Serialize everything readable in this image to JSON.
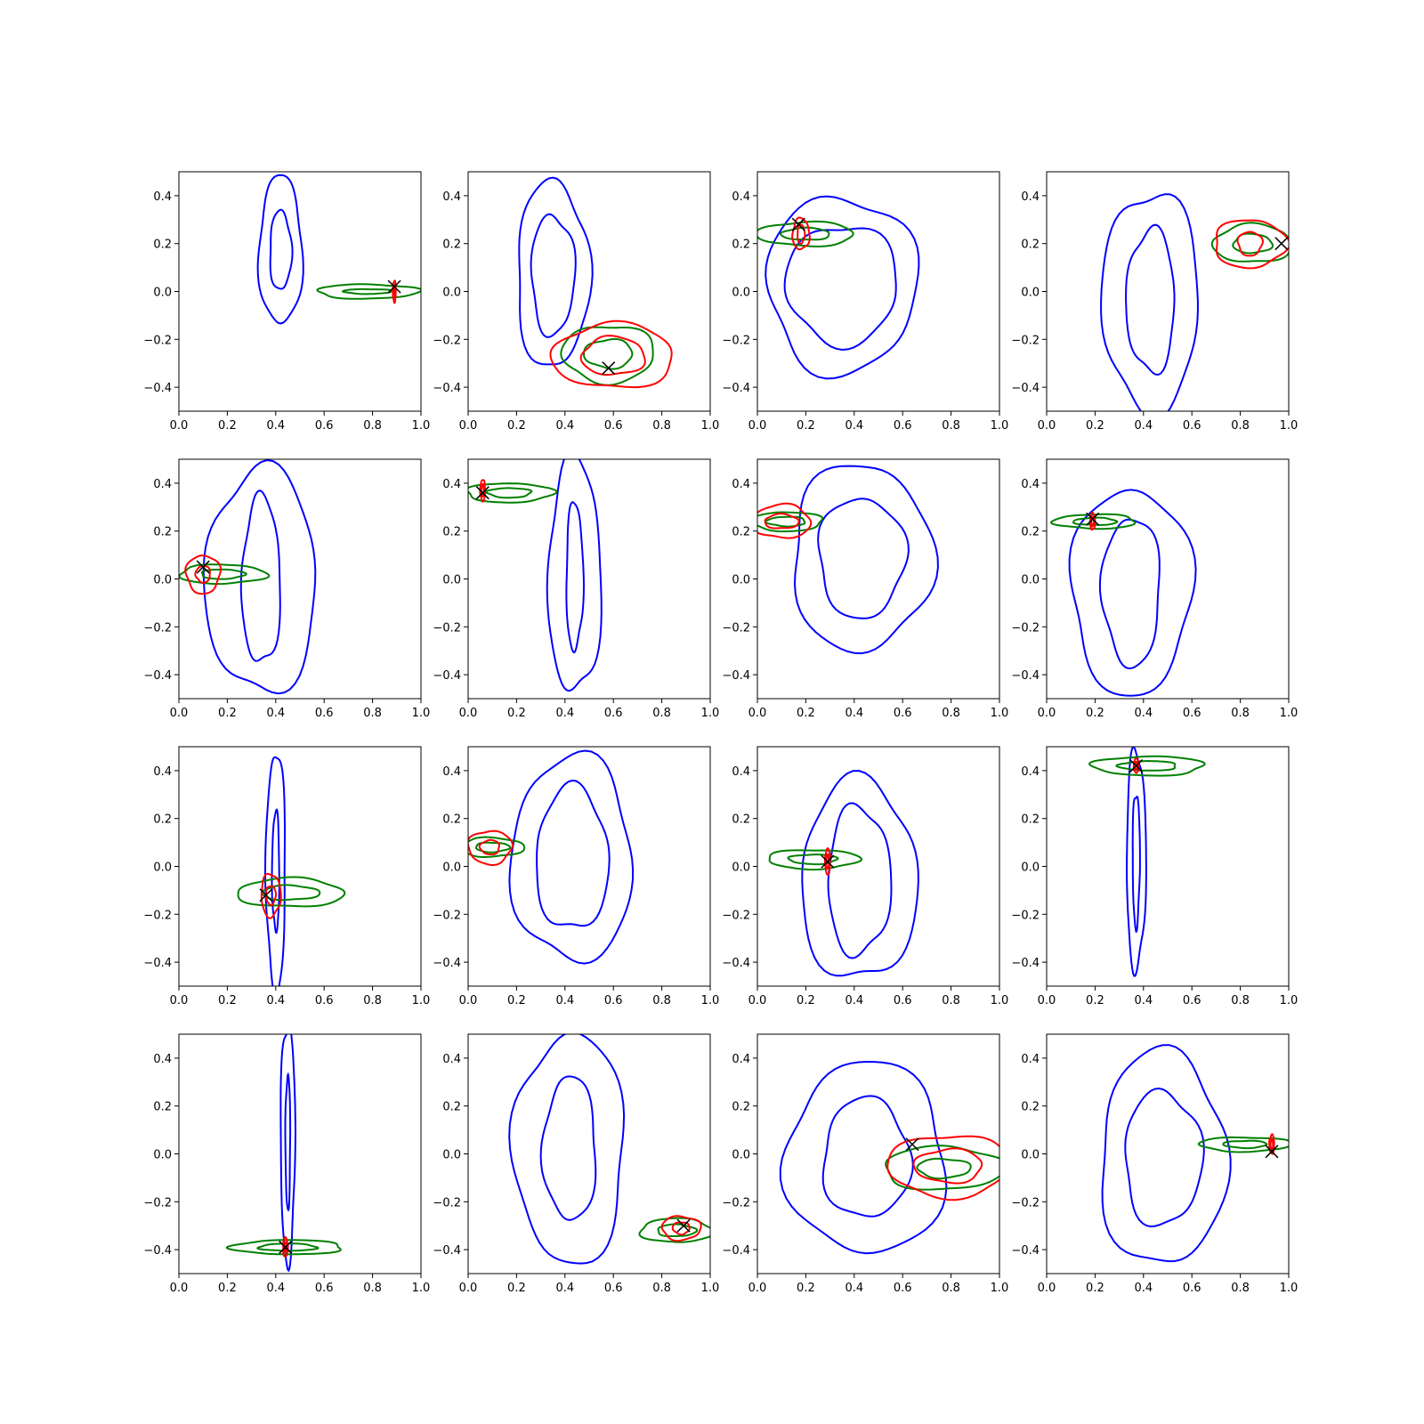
{
  "figure": {
    "layout": "4x4 grid of contour panels",
    "x_ticks": [
      "0.0",
      "0.2",
      "0.4",
      "0.6",
      "0.8",
      "1.0"
    ],
    "y_ticks": [
      "0.4",
      "0.2",
      "0.0",
      "−0.2",
      "−0.4"
    ],
    "colors": {
      "blue": "#0000ff",
      "green": "#008000",
      "red": "#ff0000",
      "marker": "#000000"
    }
  },
  "chart_data": [
    {
      "type": "contour",
      "xlim": [
        0,
        1
      ],
      "ylim": [
        -0.5,
        0.5
      ],
      "grid": false,
      "blue": {
        "center": [
          0.42,
          0.17
        ],
        "spread": [
          0.18,
          0.62
        ],
        "inner": [
          0.09,
          0.33
        ]
      },
      "green": {
        "center": [
          0.78,
          0.0
        ],
        "spread": [
          0.42,
          0.06
        ],
        "inner": [
          0.2,
          0.02
        ]
      },
      "red": {
        "center": [
          0.89,
          0.0
        ],
        "spread": [
          0.012,
          0.09
        ],
        "inner": [
          0.006,
          0.05
        ]
      },
      "marker": [
        0.89,
        0.02
      ]
    },
    {
      "type": "contour",
      "xlim": [
        0,
        1
      ],
      "ylim": [
        -0.5,
        0.5
      ],
      "grid": false,
      "blue": {
        "center": [
          0.35,
          0.07
        ],
        "spread": [
          0.3,
          0.78
        ],
        "inner": [
          0.18,
          0.5
        ]
      },
      "green": {
        "center": [
          0.58,
          -0.26
        ],
        "spread": [
          0.38,
          0.24
        ],
        "inner": [
          0.2,
          0.12
        ]
      },
      "red": {
        "center": [
          0.6,
          -0.27
        ],
        "spread": [
          0.5,
          0.27
        ],
        "inner": [
          0.26,
          0.16
        ]
      },
      "marker": [
        0.58,
        -0.32
      ]
    },
    {
      "type": "contour",
      "xlim": [
        0,
        1
      ],
      "ylim": [
        -0.5,
        0.5
      ],
      "grid": false,
      "blue": {
        "center": [
          0.35,
          0.03
        ],
        "spread": [
          0.62,
          0.74
        ],
        "inner": [
          0.46,
          0.5
        ]
      },
      "green": {
        "center": [
          0.2,
          0.24
        ],
        "spread": [
          0.4,
          0.1
        ],
        "inner": [
          0.2,
          0.05
        ]
      },
      "red": {
        "center": [
          0.18,
          0.24
        ],
        "spread": [
          0.07,
          0.13
        ],
        "inner": [
          0.03,
          0.08
        ]
      },
      "marker": [
        0.17,
        0.28
      ]
    },
    {
      "type": "contour",
      "xlim": [
        0,
        1
      ],
      "ylim": [
        -0.5,
        0.5
      ],
      "grid": false,
      "blue": {
        "center": [
          0.43,
          -0.04
        ],
        "spread": [
          0.4,
          0.92
        ],
        "inner": [
          0.2,
          0.6
        ]
      },
      "green": {
        "center": [
          0.85,
          0.2
        ],
        "spread": [
          0.32,
          0.16
        ],
        "inner": [
          0.16,
          0.08
        ]
      },
      "red": {
        "center": [
          0.84,
          0.2
        ],
        "spread": [
          0.3,
          0.2
        ],
        "inner": [
          0.1,
          0.1
        ]
      },
      "marker": [
        0.97,
        0.2
      ]
    },
    {
      "type": "contour",
      "xlim": [
        0,
        1
      ],
      "ylim": [
        -0.5,
        0.5
      ],
      "grid": false,
      "blue": {
        "center": [
          0.34,
          -0.01
        ],
        "spread": [
          0.46,
          0.94
        ],
        "inner": [
          0.16,
          0.7
        ]
      },
      "green": {
        "center": [
          0.18,
          0.02
        ],
        "spread": [
          0.36,
          0.08
        ],
        "inner": [
          0.18,
          0.04
        ]
      },
      "red": {
        "center": [
          0.1,
          0.02
        ],
        "spread": [
          0.14,
          0.16
        ],
        "inner": [
          0.06,
          0.07
        ]
      },
      "marker": [
        0.1,
        0.05
      ]
    },
    {
      "type": "contour",
      "xlim": [
        0,
        1
      ],
      "ylim": [
        -0.5,
        0.5
      ],
      "grid": false,
      "blue": {
        "center": [
          0.44,
          0.01
        ],
        "spread": [
          0.22,
          0.98
        ],
        "inner": [
          0.07,
          0.62
        ]
      },
      "green": {
        "center": [
          0.17,
          0.36
        ],
        "spread": [
          0.36,
          0.08
        ],
        "inner": [
          0.18,
          0.04
        ]
      },
      "red": {
        "center": [
          0.06,
          0.37
        ],
        "spread": [
          0.02,
          0.09
        ],
        "inner": [
          0.01,
          0.05
        ]
      },
      "marker": [
        0.06,
        0.36
      ]
    },
    {
      "type": "contour",
      "xlim": [
        0,
        1
      ],
      "ylim": [
        -0.5,
        0.5
      ],
      "grid": false,
      "blue": {
        "center": [
          0.43,
          0.09
        ],
        "spread": [
          0.58,
          0.78
        ],
        "inner": [
          0.36,
          0.5
        ]
      },
      "green": {
        "center": [
          0.12,
          0.24
        ],
        "spread": [
          0.3,
          0.08
        ],
        "inner": [
          0.16,
          0.04
        ]
      },
      "red": {
        "center": [
          0.1,
          0.24
        ],
        "spread": [
          0.24,
          0.14
        ],
        "inner": [
          0.14,
          0.06
        ]
      },
      "marker": []
    },
    {
      "type": "contour",
      "xlim": [
        0,
        1
      ],
      "ylim": [
        -0.5,
        0.5
      ],
      "grid": false,
      "blue": {
        "center": [
          0.35,
          -0.05
        ],
        "spread": [
          0.5,
          0.86
        ],
        "inner": [
          0.24,
          0.62
        ]
      },
      "green": {
        "center": [
          0.2,
          0.24
        ],
        "spread": [
          0.34,
          0.06
        ],
        "inner": [
          0.18,
          0.03
        ]
      },
      "red": {
        "center": [
          0.19,
          0.24
        ],
        "spread": [
          0.02,
          0.07
        ],
        "inner": [
          0.01,
          0.04
        ]
      },
      "marker": [
        0.19,
        0.25
      ]
    },
    {
      "type": "contour",
      "xlim": [
        0,
        1
      ],
      "ylim": [
        -0.5,
        0.5
      ],
      "grid": false,
      "blue": {
        "center": [
          0.4,
          -0.02
        ],
        "spread": [
          0.08,
          1.0
        ],
        "inner": [
          0.03,
          0.5
        ]
      },
      "green": {
        "center": [
          0.46,
          -0.11
        ],
        "spread": [
          0.44,
          0.12
        ],
        "inner": [
          0.24,
          0.06
        ]
      },
      "red": {
        "center": [
          0.38,
          -0.12
        ],
        "spread": [
          0.08,
          0.18
        ],
        "inner": [
          0.04,
          0.08
        ]
      },
      "marker": [
        0.36,
        -0.12
      ]
    },
    {
      "type": "contour",
      "xlim": [
        0,
        1
      ],
      "ylim": [
        -0.5,
        0.5
      ],
      "grid": false,
      "blue": {
        "center": [
          0.43,
          0.03
        ],
        "spread": [
          0.5,
          0.86
        ],
        "inner": [
          0.3,
          0.6
        ]
      },
      "green": {
        "center": [
          0.1,
          0.08
        ],
        "spread": [
          0.26,
          0.08
        ],
        "inner": [
          0.14,
          0.04
        ]
      },
      "red": {
        "center": [
          0.09,
          0.08
        ],
        "spread": [
          0.18,
          0.14
        ],
        "inner": [
          0.08,
          0.06
        ]
      },
      "marker": []
    },
    {
      "type": "contour",
      "xlim": [
        0,
        1
      ],
      "ylim": [
        -0.5,
        0.5
      ],
      "grid": false,
      "blue": {
        "center": [
          0.42,
          -0.06
        ],
        "spread": [
          0.48,
          0.84
        ],
        "inner": [
          0.26,
          0.62
        ]
      },
      "green": {
        "center": [
          0.23,
          0.03
        ],
        "spread": [
          0.38,
          0.08
        ],
        "inner": [
          0.2,
          0.04
        ]
      },
      "red": {
        "center": [
          0.29,
          0.02
        ],
        "spread": [
          0.02,
          0.11
        ],
        "inner": [
          0.01,
          0.06
        ]
      },
      "marker": [
        0.29,
        0.02
      ]
    },
    {
      "type": "contour",
      "xlim": [
        0,
        1
      ],
      "ylim": [
        -0.5,
        0.5
      ],
      "grid": false,
      "blue": {
        "center": [
          0.37,
          0.03
        ],
        "spread": [
          0.08,
          0.92
        ],
        "inner": [
          0.03,
          0.56
        ]
      },
      "green": {
        "center": [
          0.42,
          0.42
        ],
        "spread": [
          0.46,
          0.08
        ],
        "inner": [
          0.24,
          0.04
        ]
      },
      "red": {
        "center": [
          0.37,
          0.42
        ],
        "spread": [
          0.02,
          0.06
        ],
        "inner": [
          0.01,
          0.03
        ]
      },
      "marker": [
        0.37,
        0.42
      ]
    },
    {
      "type": "contour",
      "xlim": [
        0,
        1
      ],
      "ylim": [
        -0.5,
        0.5
      ],
      "grid": false,
      "blue": {
        "center": [
          0.45,
          0.05
        ],
        "spread": [
          0.06,
          1.0
        ],
        "inner": [
          0.02,
          0.56
        ]
      },
      "green": {
        "center": [
          0.45,
          -0.39
        ],
        "spread": [
          0.46,
          0.06
        ],
        "inner": [
          0.24,
          0.03
        ]
      },
      "red": {
        "center": [
          0.44,
          -0.39
        ],
        "spread": [
          0.02,
          0.08
        ],
        "inner": [
          0.01,
          0.04
        ]
      },
      "marker": [
        0.44,
        -0.39
      ]
    },
    {
      "type": "contour",
      "xlim": [
        0,
        1
      ],
      "ylim": [
        -0.5,
        0.5
      ],
      "grid": false,
      "blue": {
        "center": [
          0.42,
          0.02
        ],
        "spread": [
          0.46,
          0.96
        ],
        "inner": [
          0.22,
          0.6
        ]
      },
      "green": {
        "center": [
          0.86,
          -0.32
        ],
        "spread": [
          0.3,
          0.1
        ],
        "inner": [
          0.16,
          0.05
        ]
      },
      "red": {
        "center": [
          0.88,
          -0.31
        ],
        "spread": [
          0.16,
          0.1
        ],
        "inner": [
          0.07,
          0.05
        ]
      },
      "marker": [
        0.89,
        -0.3
      ]
    },
    {
      "type": "contour",
      "xlim": [
        0,
        1
      ],
      "ylim": [
        -0.5,
        0.5
      ],
      "grid": false,
      "blue": {
        "center": [
          0.45,
          -0.02
        ],
        "spread": [
          0.66,
          0.8
        ],
        "inner": [
          0.36,
          0.5
        ]
      },
      "green": {
        "center": [
          0.77,
          -0.06
        ],
        "spread": [
          0.5,
          0.18
        ],
        "inner": [
          0.22,
          0.08
        ]
      },
      "red": {
        "center": [
          0.79,
          -0.05
        ],
        "spread": [
          0.5,
          0.26
        ],
        "inner": [
          0.28,
          0.14
        ]
      },
      "marker": [
        0.64,
        0.04
      ]
    },
    {
      "type": "contour",
      "xlim": [
        0,
        1
      ],
      "ylim": [
        -0.5,
        0.5
      ],
      "grid": false,
      "blue": {
        "center": [
          0.48,
          -0.02
        ],
        "spread": [
          0.52,
          0.9
        ],
        "inner": [
          0.32,
          0.56
        ]
      },
      "green": {
        "center": [
          0.82,
          0.04
        ],
        "spread": [
          0.38,
          0.06
        ],
        "inner": [
          0.18,
          0.03
        ]
      },
      "red": {
        "center": [
          0.93,
          0.04
        ],
        "spread": [
          0.02,
          0.08
        ],
        "inner": [
          0.01,
          0.04
        ]
      },
      "marker": [
        0.93,
        0.01
      ]
    }
  ]
}
